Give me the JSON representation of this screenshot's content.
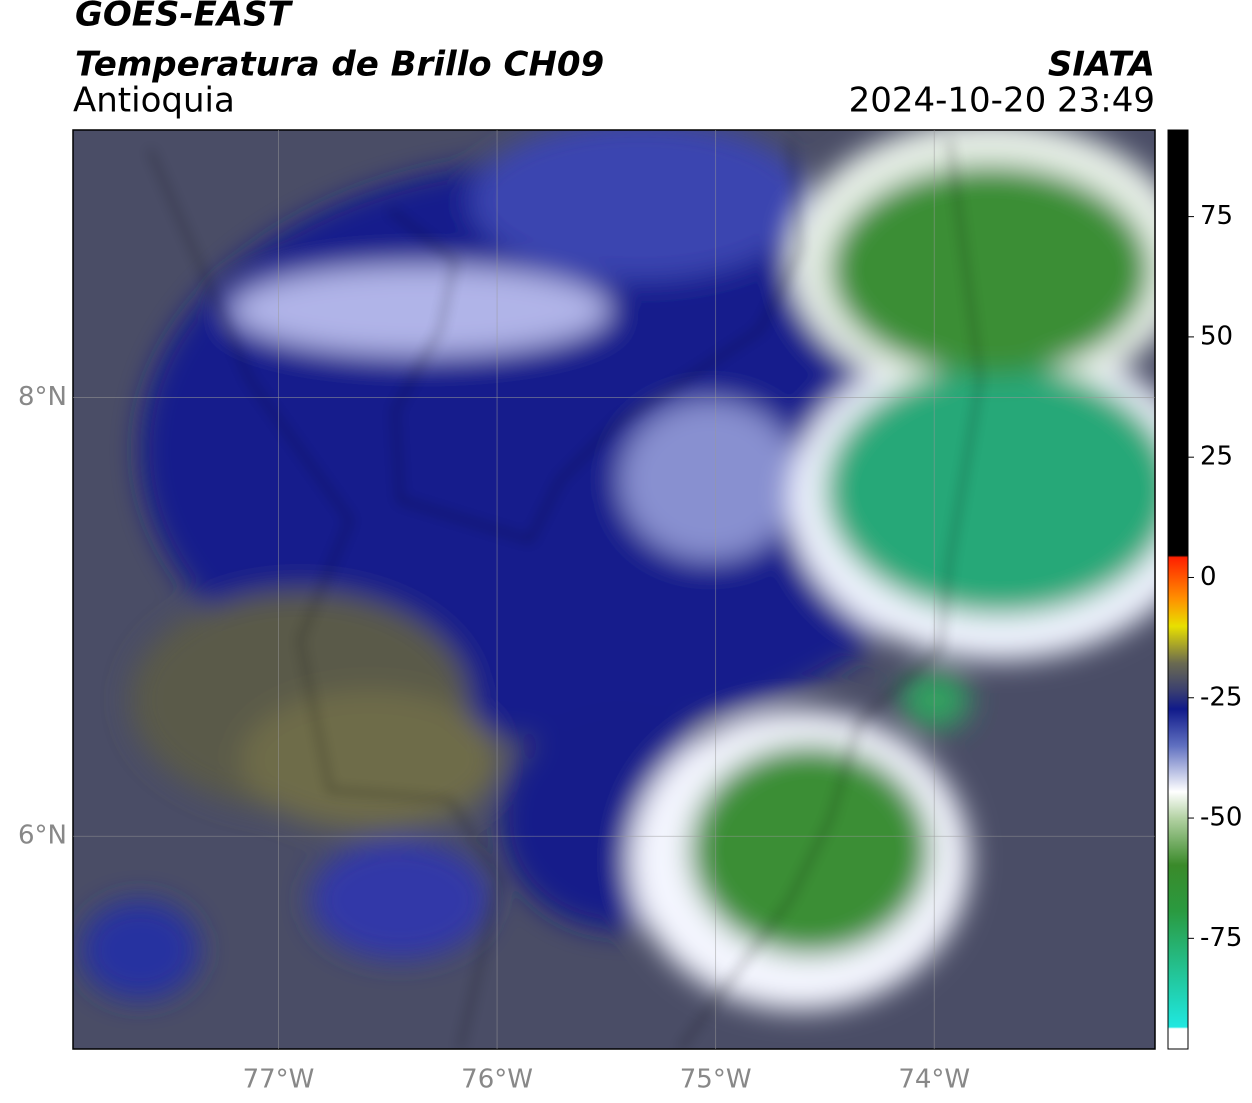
{
  "header": {
    "title": "GOES-EAST",
    "subtitle": "Temperatura de Brillo CH09",
    "region": "Antioquia",
    "source": "SIATA",
    "datetime": "2024-10-20 23:49"
  },
  "map": {
    "lonlim": [
      -77.94,
      -72.99
    ],
    "latlim": [
      5.03,
      9.22
    ],
    "lon_ticks": [
      {
        "value": -77,
        "label": "77°W"
      },
      {
        "value": -76,
        "label": "76°W"
      },
      {
        "value": -75,
        "label": "75°W"
      },
      {
        "value": -74,
        "label": "74°W"
      }
    ],
    "lat_ticks": [
      {
        "value": 8,
        "label": "8°N"
      },
      {
        "value": 6,
        "label": "6°N"
      }
    ]
  },
  "colorbar": {
    "lim": [
      -98,
      93
    ],
    "ticks": [
      75,
      50,
      25,
      0,
      -25,
      -50,
      -75
    ]
  }
}
